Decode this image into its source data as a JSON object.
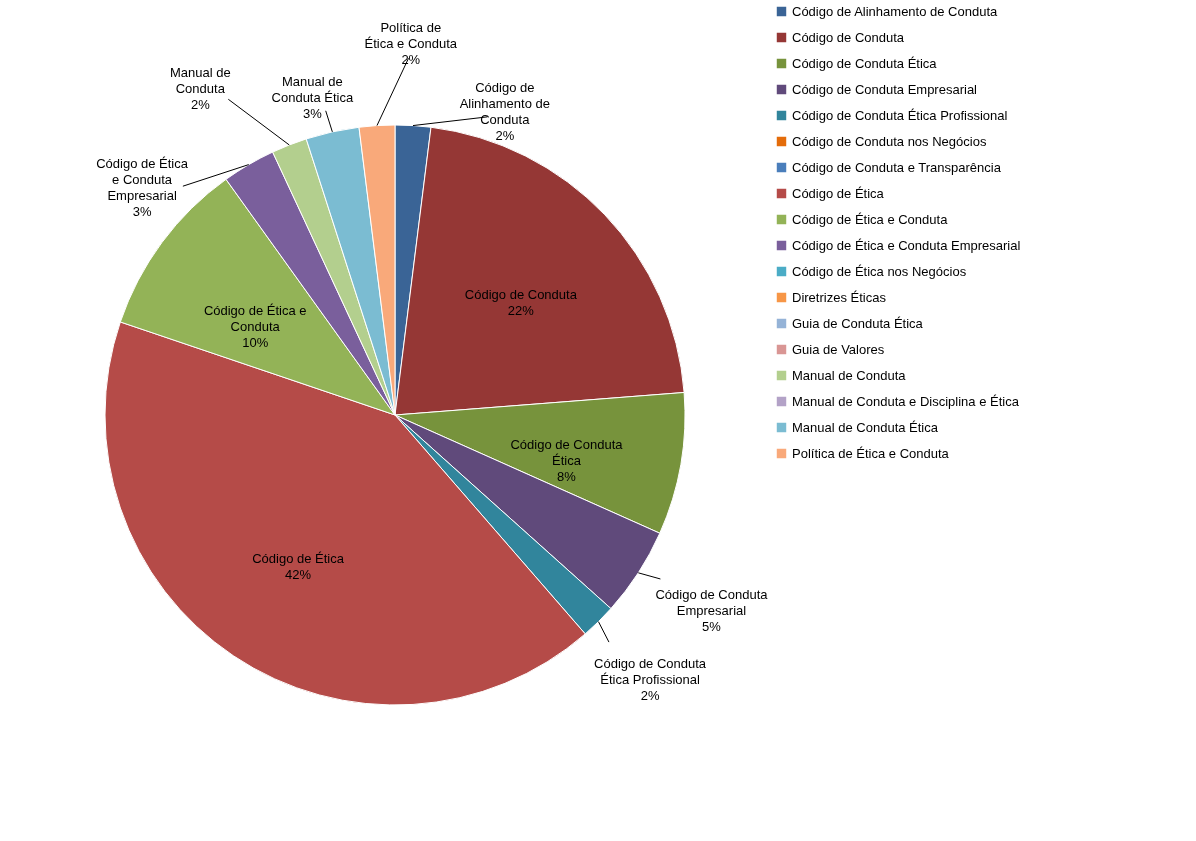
{
  "chart_data": {
    "type": "pie",
    "categories": [
      "Código de Alinhamento de Conduta",
      "Código de Conduta",
      "Código de Conduta Ética",
      "Código de Conduta Empresarial",
      "Código de Conduta Ética Profissional",
      "Código de Conduta nos Negócios",
      "Código de Conduta e Transparência",
      "Código de Ética",
      "Código de Ética e Conduta",
      "Código de Ética e Conduta Empresarial",
      "Código de Ética nos Negócios",
      "Diretrizes Éticas",
      "Guia de Conduta Ética",
      "Guia de Valores",
      "Manual de Conduta",
      "Manual de Conduta e Disciplina e Ética",
      "Manual de Conduta Ética",
      "Política de Ética e Conduta"
    ],
    "values": [
      2,
      22,
      8,
      5,
      2,
      0,
      0,
      42,
      10,
      3,
      0,
      0,
      0,
      0,
      2,
      0,
      3,
      2
    ],
    "value_labels": [
      "2%",
      "22%",
      "8%",
      "5%",
      "2%",
      null,
      null,
      "42%",
      "10%",
      "3%",
      null,
      null,
      null,
      null,
      "2%",
      null,
      "3%",
      "2%"
    ],
    "colors": [
      "#3a6496",
      "#953735",
      "#77933c",
      "#604a7b",
      "#31859c",
      "#e46c0a",
      "#4a7ebb",
      "#b54b48",
      "#93b357",
      "#7a5f9c",
      "#4bacc6",
      "#f79646",
      "#95b3d7",
      "#d99694",
      "#b3cf8e",
      "#b3a2c7",
      "#7bbcd2",
      "#f9a97a"
    ],
    "legend": "right"
  }
}
